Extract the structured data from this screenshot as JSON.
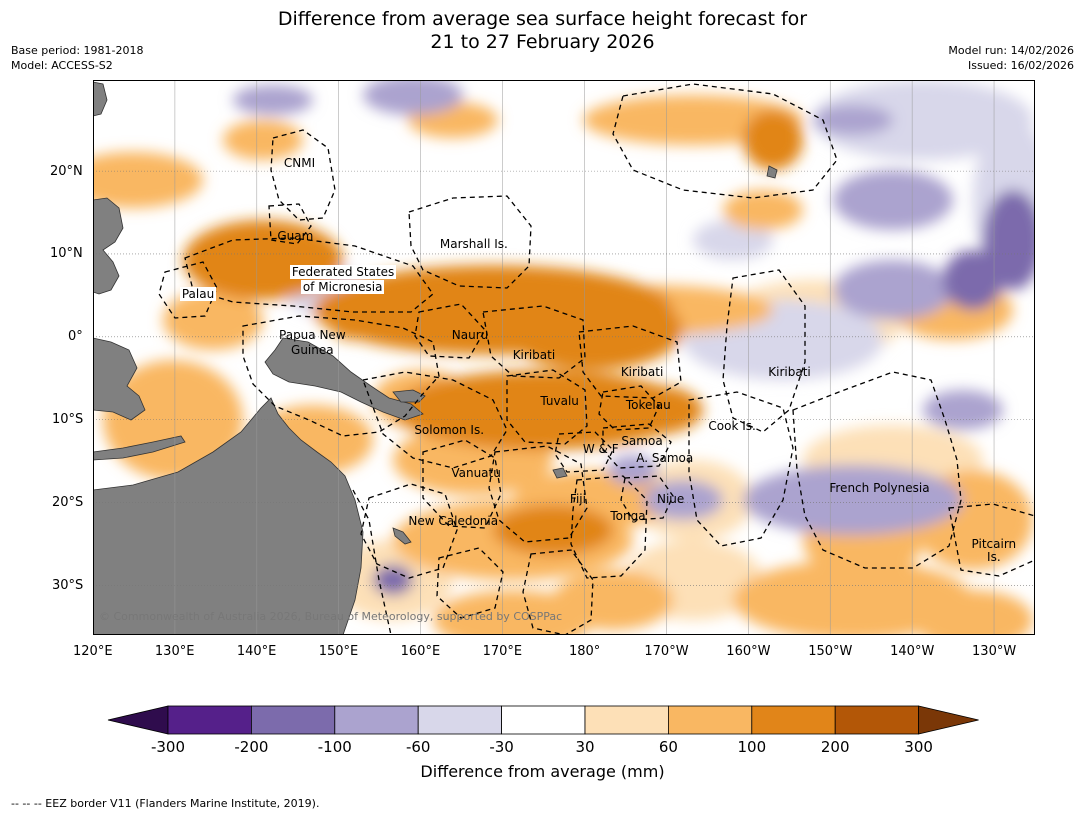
{
  "title": {
    "line1": "Difference from average sea surface height forecast for",
    "line2": "21 to 27 February 2026"
  },
  "meta_left": {
    "base_period": "Base period: 1981-2018",
    "model": "Model: ACCESS-S2"
  },
  "meta_right": {
    "model_run": "Model run: 14/02/2026",
    "issued": "Issued: 16/02/2026"
  },
  "map": {
    "lon_range": [
      120,
      235
    ],
    "lat_range": [
      -36,
      31
    ],
    "lon_ticks": [
      "120°E",
      "130°E",
      "140°E",
      "150°E",
      "160°E",
      "170°E",
      "180°",
      "170°W",
      "160°W",
      "150°W",
      "140°W",
      "130°W"
    ],
    "lat_ticks": [
      "20°N",
      "10°N",
      "0°",
      "10°S",
      "20°S",
      "30°S"
    ],
    "places": [
      {
        "label": "CNMI",
        "lon": 145.2,
        "lat": 21.0
      },
      {
        "label": "Guam",
        "lon": 144.7,
        "lat": 12.2
      },
      {
        "label": "Marshall Is.",
        "lon": 166.5,
        "lat": 11.2
      },
      {
        "label": "Federated States",
        "lon": 150.5,
        "lat": 7.8
      },
      {
        "label": "of Micronesia",
        "lon": 150.5,
        "lat": 6.0
      },
      {
        "label": "Palau",
        "lon": 132.8,
        "lat": 5.2
      },
      {
        "label": "Papua New",
        "lon": 146.8,
        "lat": 0.2
      },
      {
        "label": "Guinea",
        "lon": 146.8,
        "lat": -1.6
      },
      {
        "label": "Nauru",
        "lon": 166.0,
        "lat": 0.2
      },
      {
        "label": "Kiribati",
        "lon": 173.8,
        "lat": -2.2
      },
      {
        "label": "Kiribati",
        "lon": 187.0,
        "lat": -4.2
      },
      {
        "label": "Kiribati",
        "lon": 205.0,
        "lat": -4.2
      },
      {
        "label": "Tuvalu",
        "lon": 177.0,
        "lat": -7.8
      },
      {
        "label": "Tokelau",
        "lon": 187.8,
        "lat": -8.2
      },
      {
        "label": "Cook Is.",
        "lon": 198.0,
        "lat": -10.8
      },
      {
        "label": "Solomon Is.",
        "lon": 163.5,
        "lat": -11.2
      },
      {
        "label": "W & F",
        "lon": 182.0,
        "lat": -13.6
      },
      {
        "label": "Samoa",
        "lon": 187.0,
        "lat": -12.6
      },
      {
        "label": "A. Samoa",
        "lon": 189.8,
        "lat": -14.6
      },
      {
        "label": "Vanuatu",
        "lon": 166.8,
        "lat": -16.4
      },
      {
        "label": "Fiji",
        "lon": 179.2,
        "lat": -19.6
      },
      {
        "label": "Niue",
        "lon": 190.5,
        "lat": -19.6
      },
      {
        "label": "Tonga",
        "lon": 185.3,
        "lat": -21.6
      },
      {
        "label": "French Polynesia",
        "lon": 216.0,
        "lat": -18.2
      },
      {
        "label": "New Caledonia",
        "lon": 164.0,
        "lat": -22.2
      },
      {
        "label": "Pitcairn",
        "lon": 230.0,
        "lat": -25.0
      },
      {
        "label": "Is.",
        "lon": 230.0,
        "lat": -26.6
      }
    ],
    "copyright": "© Commonwealth of Australia 2026, Bureau of Meteorology, supported by COSPPac"
  },
  "colorbar": {
    "ticks": [
      "-300",
      "-200",
      "-100",
      "-60",
      "-30",
      "30",
      "60",
      "100",
      "200",
      "300"
    ],
    "colors": [
      "#2f0c4d",
      "#55208a",
      "#7c6bac",
      "#aba3cf",
      "#d8d7ea",
      "#ffffff",
      "#fde0b7",
      "#f9b762",
      "#e18519",
      "#b35707",
      "#7a3707"
    ],
    "label": "Difference from average (mm)"
  },
  "footnote": "--  --  -- EEZ border V11 (Flanders Marine Institute, 2019)."
}
